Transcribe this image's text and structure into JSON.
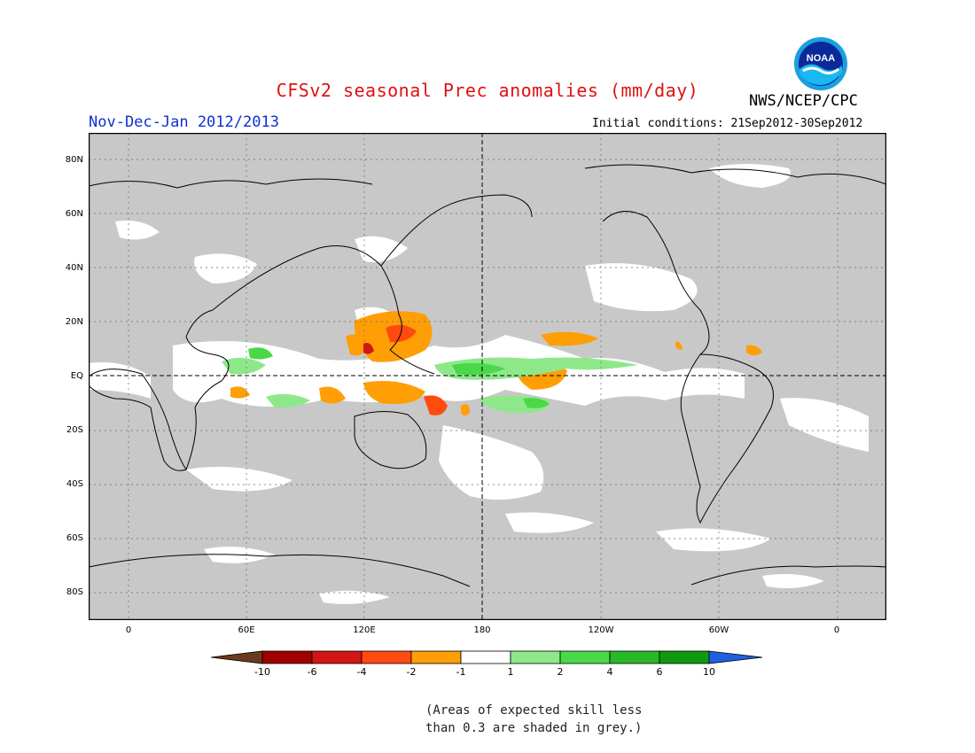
{
  "title": "CFSv2 seasonal Prec anomalies (mm/day)",
  "agency": "NWS/NCEP/CPC",
  "period": "Nov-Dec-Jan 2012/2013",
  "initial_conditions": "Initial conditions: 21Sep2012-30Sep2012",
  "logo_text": "NOAA",
  "lat_labels": [
    "80N",
    "60N",
    "40N",
    "20N",
    "EQ",
    "20S",
    "40S",
    "60S",
    "80S"
  ],
  "lon_labels": [
    "0",
    "60E",
    "120E",
    "180",
    "120W",
    "60W",
    "0"
  ],
  "colorbar": {
    "labels": [
      "-10",
      "-6",
      "-4",
      "-2",
      "-1",
      "1",
      "2",
      "4",
      "6",
      "10"
    ],
    "colors": [
      "#6b3a1e",
      "#a00000",
      "#d41515",
      "#ff4a10",
      "#ff9e05",
      "#ffffff",
      "#8ee88a",
      "#48d848",
      "#28b828",
      "#109810",
      "#2060e0"
    ]
  },
  "note_lines": [
    "(Areas of expected skill less",
    "than 0.3 are shaded in grey.)"
  ],
  "colors": {
    "grey_mask": "#c8c8c8",
    "title": "#e01010",
    "period": "#1030d0"
  }
}
